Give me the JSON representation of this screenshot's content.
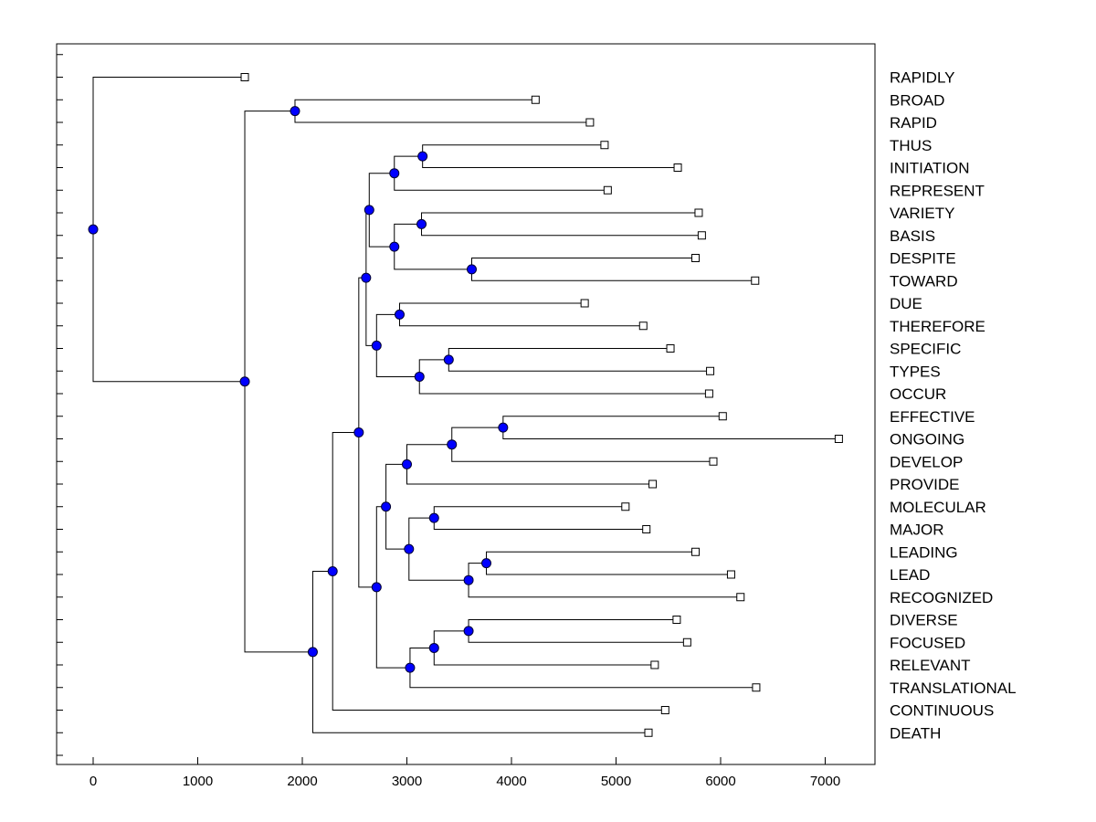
{
  "chart_data": {
    "type": "dendrogram",
    "title": "",
    "xlabel": "",
    "ylabel": "",
    "xlim": [
      -350,
      7500
    ],
    "xticks": [
      0,
      1000,
      2000,
      3000,
      4000,
      5000,
      6000,
      7000
    ],
    "colors": {
      "node": "#0000ff",
      "line": "#000000",
      "leaf_fill": "#ffffff"
    },
    "leaves": [
      {
        "label": "RAPIDLY",
        "value": 1450
      },
      {
        "label": "BROAD",
        "value": 4230
      },
      {
        "label": "RAPID",
        "value": 4750
      },
      {
        "label": "THUS",
        "value": 4890
      },
      {
        "label": "INITIATION",
        "value": 5590
      },
      {
        "label": "REPRESENT",
        "value": 4920
      },
      {
        "label": "VARIETY",
        "value": 5790
      },
      {
        "label": "BASIS",
        "value": 5820
      },
      {
        "label": "DESPITE",
        "value": 5760
      },
      {
        "label": "TOWARD",
        "value": 6330
      },
      {
        "label": "DUE",
        "value": 4700
      },
      {
        "label": "THEREFORE",
        "value": 5260
      },
      {
        "label": "SPECIFIC",
        "value": 5520
      },
      {
        "label": "TYPES",
        "value": 5900
      },
      {
        "label": "OCCUR",
        "value": 5890
      },
      {
        "label": "EFFECTIVE",
        "value": 6020
      },
      {
        "label": "ONGOING",
        "value": 7130
      },
      {
        "label": "DEVELOP",
        "value": 5930
      },
      {
        "label": "PROVIDE",
        "value": 5350
      },
      {
        "label": "MOLECULAR",
        "value": 5090
      },
      {
        "label": "MAJOR",
        "value": 5290
      },
      {
        "label": "LEADING",
        "value": 5760
      },
      {
        "label": "LEAD",
        "value": 6100
      },
      {
        "label": "RECOGNIZED",
        "value": 6190
      },
      {
        "label": "DIVERSE",
        "value": 5580
      },
      {
        "label": "FOCUSED",
        "value": 5680
      },
      {
        "label": "RELEVANT",
        "value": 5370
      },
      {
        "label": "TRANSLATIONAL",
        "value": 6340
      },
      {
        "label": "CONTINUOUS",
        "value": 5470
      },
      {
        "label": "DEATH",
        "value": 5310
      }
    ],
    "nodes": [
      {
        "id": "n1",
        "value": 3150,
        "children": [
          "THUS",
          "INITIATION"
        ]
      },
      {
        "id": "n2",
        "value": 2880,
        "children": [
          "n1",
          "REPRESENT"
        ]
      },
      {
        "id": "n3",
        "value": 3140,
        "children": [
          "VARIETY",
          "BASIS"
        ]
      },
      {
        "id": "n4",
        "value": 3620,
        "children": [
          "DESPITE",
          "TOWARD"
        ]
      },
      {
        "id": "n5",
        "value": 2880,
        "children": [
          "n3",
          "n4"
        ]
      },
      {
        "id": "n6",
        "value": 2640,
        "children": [
          "n2",
          "n5"
        ]
      },
      {
        "id": "n7",
        "value": 2930,
        "children": [
          "DUE",
          "THEREFORE"
        ]
      },
      {
        "id": "n8",
        "value": 3400,
        "children": [
          "SPECIFIC",
          "TYPES"
        ]
      },
      {
        "id": "n9",
        "value": 3120,
        "children": [
          "n8",
          "OCCUR"
        ]
      },
      {
        "id": "n10",
        "value": 2710,
        "children": [
          "n7",
          "n9"
        ]
      },
      {
        "id": "n11",
        "value": 2610,
        "children": [
          "n6",
          "n10"
        ]
      },
      {
        "id": "n12",
        "value": 3920,
        "children": [
          "EFFECTIVE",
          "ONGOING"
        ]
      },
      {
        "id": "n13",
        "value": 3430,
        "children": [
          "n12",
          "DEVELOP"
        ]
      },
      {
        "id": "n14",
        "value": 3000,
        "children": [
          "n13",
          "PROVIDE"
        ]
      },
      {
        "id": "n15",
        "value": 3260,
        "children": [
          "MOLECULAR",
          "MAJOR"
        ]
      },
      {
        "id": "n16",
        "value": 3760,
        "children": [
          "LEADING",
          "LEAD"
        ]
      },
      {
        "id": "n17",
        "value": 3590,
        "children": [
          "n16",
          "RECOGNIZED"
        ]
      },
      {
        "id": "n18",
        "value": 3020,
        "children": [
          "n15",
          "n17"
        ]
      },
      {
        "id": "n19",
        "value": 2800,
        "children": [
          "n14",
          "n18"
        ]
      },
      {
        "id": "n20",
        "value": 3590,
        "children": [
          "DIVERSE",
          "FOCUSED"
        ]
      },
      {
        "id": "n21",
        "value": 3260,
        "children": [
          "n20",
          "RELEVANT"
        ]
      },
      {
        "id": "n22",
        "value": 3030,
        "children": [
          "n21",
          "TRANSLATIONAL"
        ]
      },
      {
        "id": "n23",
        "value": 2710,
        "children": [
          "n19",
          "n22"
        ]
      },
      {
        "id": "n24",
        "value": 2540,
        "children": [
          "n11",
          "n23"
        ]
      },
      {
        "id": "n25",
        "value": 2290,
        "children": [
          "n24",
          "CONTINUOUS"
        ]
      },
      {
        "id": "n26",
        "value": 2100,
        "children": [
          "n25",
          "DEATH"
        ]
      },
      {
        "id": "n27",
        "value": 1930,
        "children": [
          "BROAD",
          "RAPID"
        ]
      },
      {
        "id": "n28",
        "value": 1450,
        "children": [
          "n27",
          "n26"
        ]
      },
      {
        "id": "n29",
        "value": 0,
        "children": [
          "RAPIDLY",
          "n28"
        ]
      }
    ]
  }
}
